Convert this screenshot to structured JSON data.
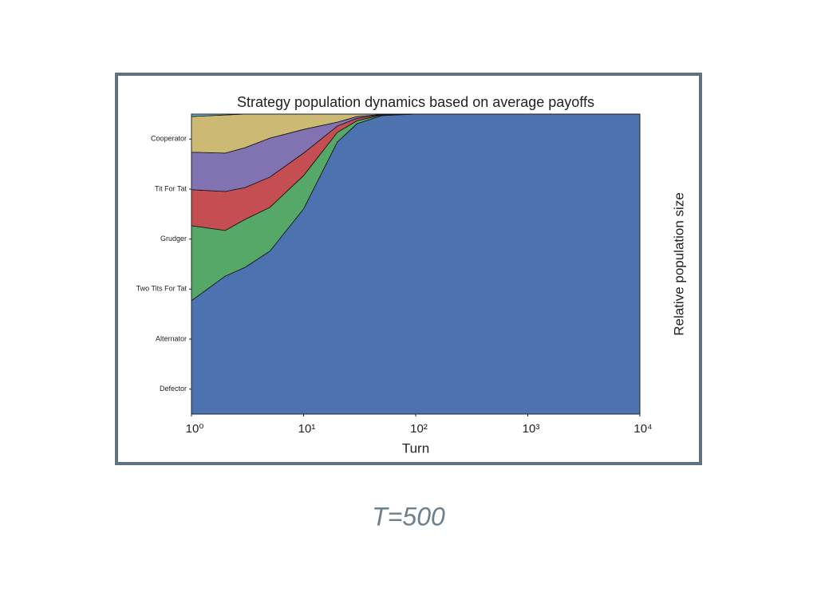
{
  "chart_data": {
    "type": "stackplot",
    "title": "Strategy population dynamics based on average payoffs",
    "xlabel": "Turn",
    "ylabel": "Relative population size",
    "x": [
      1,
      2,
      3,
      5,
      10,
      20,
      30,
      50,
      100,
      10000
    ],
    "xscale": "log",
    "xlim": [
      1,
      10000
    ],
    "xticks": [
      {
        "value": 1,
        "label": "10⁰"
      },
      {
        "value": 10,
        "label": "10¹"
      },
      {
        "value": 100,
        "label": "10²"
      },
      {
        "value": 1000,
        "label": "10³"
      },
      {
        "value": 10000,
        "label": "10⁴"
      }
    ],
    "ylim": [
      0,
      1
    ],
    "yticks": [
      {
        "value": 0.0833,
        "label": "Defector"
      },
      {
        "value": 0.25,
        "label": "Alternator"
      },
      {
        "value": 0.4167,
        "label": "Two Tits For Tat"
      },
      {
        "value": 0.5833,
        "label": "Grudger"
      },
      {
        "value": 0.75,
        "label": "Tit For Tat"
      },
      {
        "value": 0.9167,
        "label": "Cooperator"
      }
    ],
    "grid": false,
    "series": [
      {
        "color": "#4c72b0",
        "values": [
          0.378,
          0.46,
          0.489,
          0.543,
          0.684,
          0.907,
          0.968,
          0.995,
          1,
          1
        ]
      },
      {
        "color": "#55a868",
        "values": [
          0.25,
          0.152,
          0.16,
          0.146,
          0.111,
          0.032,
          0.01,
          0.002,
          0,
          0
        ]
      },
      {
        "color": "#c44e52",
        "values": [
          0.12,
          0.13,
          0.106,
          0.101,
          0.075,
          0.021,
          0.008,
          0.001,
          0,
          0
        ]
      },
      {
        "color": "#8172b2",
        "values": [
          0.125,
          0.128,
          0.133,
          0.13,
          0.079,
          0.013,
          0.006,
          0.001,
          0,
          0
        ]
      },
      {
        "color": "#ccb974",
        "values": [
          0.119,
          0.127,
          0.112,
          0.08,
          0.051,
          0.027,
          0.008,
          0.001,
          0,
          0
        ]
      },
      {
        "color": "#64b5cd",
        "values": [
          0.008,
          0.003,
          0,
          0,
          0,
          0,
          0,
          0,
          0,
          0
        ]
      }
    ]
  },
  "caption": "T=500"
}
